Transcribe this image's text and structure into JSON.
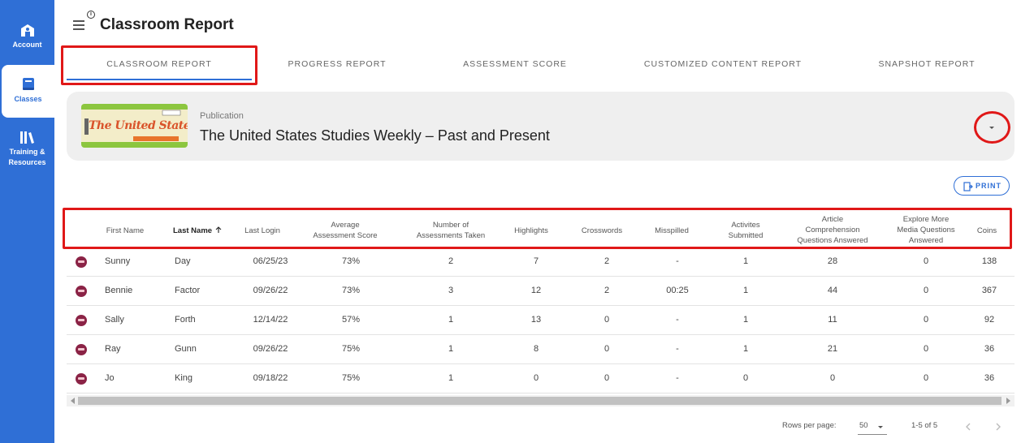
{
  "sidebar": {
    "items": [
      {
        "label": "Account",
        "icon": "account-icon"
      },
      {
        "label": "Classes",
        "icon": "book-icon"
      },
      {
        "label": "Training & Resources",
        "icon": "library-icon"
      }
    ]
  },
  "header": {
    "title": "Classroom Report",
    "info": "i"
  },
  "tabs": [
    "CLASSROOM REPORT",
    "PROGRESS REPORT",
    "ASSESSMENT SCORE",
    "CUSTOMIZED CONTENT REPORT",
    "SNAPSHOT REPORT"
  ],
  "publication": {
    "label": "Publication",
    "title": "The United States Studies Weekly – Past and Present",
    "cover_text": "The United States"
  },
  "print_button": "PRINT",
  "table": {
    "columns": {
      "first_name": "First Name",
      "last_name": "Last Name",
      "last_login": "Last Login",
      "avg_1": "Average",
      "avg_2": "Assessment Score",
      "num_1": "Number of",
      "num_2": "Assessments Taken",
      "highlights": "Highlights",
      "crosswords": "Crosswords",
      "misspilled": "Misspilled",
      "act_1": "Activites",
      "act_2": "Submitted",
      "art_1": "Article",
      "art_2": "Comprehension",
      "art_3": "Questions Answered",
      "exp_1": "Explore More",
      "exp_2": "Media Questions",
      "exp_3": "Answered",
      "coins": "Coins"
    },
    "rows": [
      {
        "first": "Sunny",
        "last": "Day",
        "login": "06/25/23",
        "avg": "73%",
        "num": "2",
        "highlights": "7",
        "crosswords": "2",
        "misspilled": "-",
        "activities": "1",
        "article": "28",
        "explore": "0",
        "coins": "138"
      },
      {
        "first": "Bennie",
        "last": "Factor",
        "login": "09/26/22",
        "avg": "73%",
        "num": "3",
        "highlights": "12",
        "crosswords": "2",
        "misspilled": "00:25",
        "activities": "1",
        "article": "44",
        "explore": "0",
        "coins": "367"
      },
      {
        "first": "Sally",
        "last": "Forth",
        "login": "12/14/22",
        "avg": "57%",
        "num": "1",
        "highlights": "13",
        "crosswords": "0",
        "misspilled": "-",
        "activities": "1",
        "article": "11",
        "explore": "0",
        "coins": "92"
      },
      {
        "first": "Ray",
        "last": "Gunn",
        "login": "09/26/22",
        "avg": "75%",
        "num": "1",
        "highlights": "8",
        "crosswords": "0",
        "misspilled": "-",
        "activities": "1",
        "article": "21",
        "explore": "0",
        "coins": "36"
      },
      {
        "first": "Jo",
        "last": "King",
        "login": "09/18/22",
        "avg": "75%",
        "num": "1",
        "highlights": "0",
        "crosswords": "0",
        "misspilled": "-",
        "activities": "0",
        "article": "0",
        "explore": "0",
        "coins": "36"
      }
    ]
  },
  "footer": {
    "rows_per_page_label": "Rows per page:",
    "rows_per_page_value": "50",
    "range": "1-5 of 5"
  },
  "colors": {
    "brand": "#2f6fd6",
    "highlight": "#e01818"
  }
}
